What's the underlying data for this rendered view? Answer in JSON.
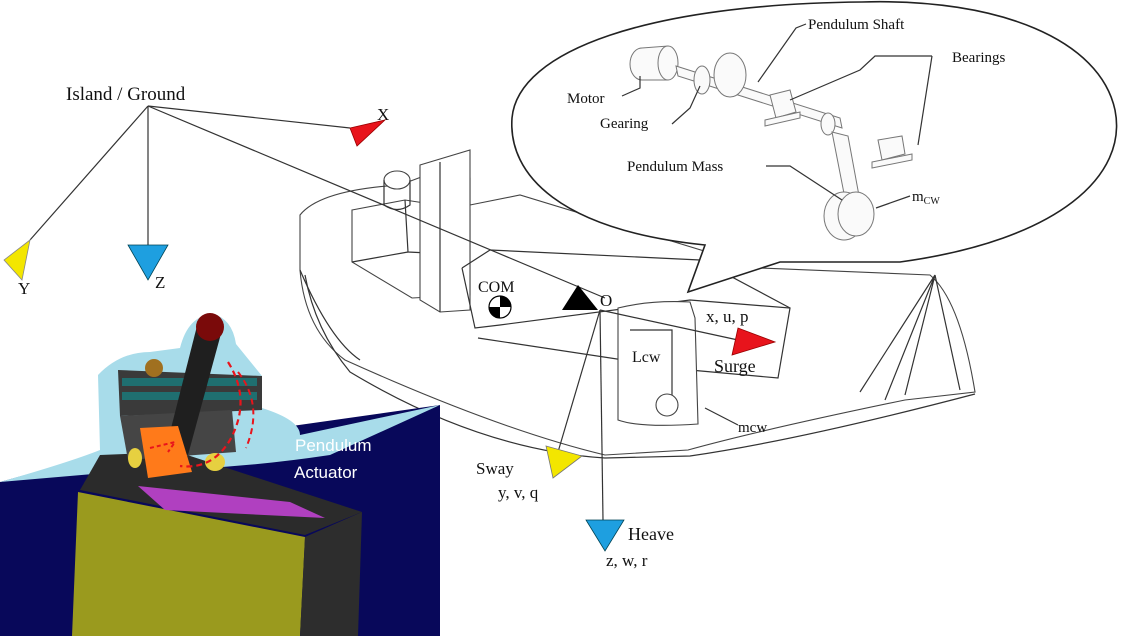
{
  "labels": {
    "ground": "Island / Ground",
    "ground_x": "X",
    "ground_y": "Y",
    "ground_z": "Z",
    "com": "COM",
    "origin": "O",
    "surge_vars": "x, u, p",
    "surge": "Surge",
    "lcw": "Lcw",
    "mcw_body": "mcw",
    "sway": "Sway",
    "sway_vars": "y, v, q",
    "heave": "Heave",
    "heave_vars": "z, w, r",
    "pendulum_shaft": "Pendulum Shaft",
    "bearings": "Bearings",
    "motor": "Motor",
    "gearing": "Gearing",
    "pendulum_mass": "Pendulum Mass",
    "mcw_base": "m",
    "mcw_sub": "CW",
    "actuator_line1": "Pendulum",
    "actuator_line2": "Actuator"
  },
  "colors": {
    "red": "#e8141c",
    "yellow": "#f3e600",
    "blue": "#1e9fe0",
    "black": "#000000",
    "navy": "#08085a",
    "light_blue": "#a8dcea",
    "olive": "#9a9a1e",
    "magenta": "#b040c0",
    "orange": "#ff7a1a",
    "teal": "#1f6f70"
  },
  "icons": [
    "com-target-icon",
    "triangle-arrow-icon"
  ]
}
